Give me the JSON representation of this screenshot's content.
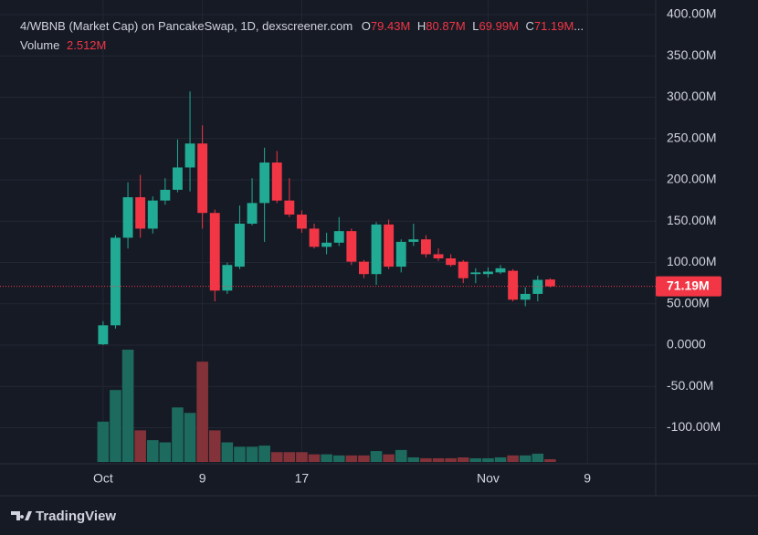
{
  "chart_data": {
    "type": "candlestick",
    "header": {
      "title": "4/WBNB (Market Cap) on PancakeSwap, 1D, dexscreener.com",
      "open_key": "O",
      "open": "79.43M",
      "high_key": "H",
      "high": "80.87M",
      "low_key": "L",
      "low": "69.99M",
      "close_key": "C",
      "close": "71.19M",
      "overflow": "...",
      "volume_key": "Volume",
      "volume": "2.512M"
    },
    "x": [
      0,
      1,
      2,
      3,
      4,
      5,
      6,
      7,
      8,
      9,
      10,
      11,
      12,
      13,
      14,
      15,
      16,
      17,
      18,
      19,
      20,
      21,
      22,
      23,
      24,
      25,
      26,
      27,
      28,
      29,
      30,
      31,
      32,
      33,
      34,
      35,
      36
    ],
    "open": [
      1,
      24,
      130,
      179,
      141,
      175,
      188,
      215,
      244,
      160,
      66,
      95,
      147,
      172,
      221,
      175,
      158,
      141,
      119,
      124,
      138,
      101,
      86,
      146,
      95,
      125,
      128,
      110,
      105,
      101,
      86,
      86,
      88,
      90,
      55,
      62,
      79.43
    ],
    "high": [
      29,
      133,
      197,
      206,
      180,
      202,
      249,
      307,
      266,
      164,
      100,
      169,
      202,
      239,
      235,
      202,
      163,
      147,
      136,
      155,
      141,
      103,
      149,
      152,
      128,
      147,
      133,
      117,
      110,
      103,
      93,
      94,
      97,
      92,
      70,
      84,
      80.87
    ],
    "low": [
      0,
      20,
      117,
      130,
      135,
      170,
      185,
      186,
      141,
      53,
      62,
      92,
      145,
      125,
      172,
      155,
      136,
      117,
      110,
      120,
      97,
      81,
      73,
      92,
      88,
      120,
      106,
      102,
      95,
      75,
      75,
      82,
      86,
      53,
      47,
      53,
      69.99
    ],
    "close": [
      24,
      130,
      179,
      141,
      175,
      188,
      215,
      244,
      160,
      66,
      97,
      147,
      172,
      221,
      175,
      158,
      141,
      119,
      124,
      138,
      101,
      86,
      146,
      95,
      125,
      128,
      110,
      105,
      97,
      81,
      88,
      89,
      93,
      55,
      62,
      79,
      71.19
    ],
    "volume": [
      37,
      66,
      103,
      29,
      20,
      18,
      50,
      45,
      92,
      29,
      18,
      14,
      14,
      15,
      9,
      9,
      9,
      7,
      7,
      6,
      6,
      6,
      10,
      7,
      11,
      4.2,
      3.4,
      3.4,
      3.4,
      4.2,
      3.4,
      3.4,
      4.2,
      6,
      6,
      7.6,
      2.512
    ],
    "up_color": "#22ab94",
    "down_color": "#f23645",
    "volume_up_color": "#1c6b5e",
    "volume_down_color": "#823238",
    "last_price": {
      "value": 71.19,
      "label": "71.19M"
    },
    "ylim": [
      -143.6,
      417.7
    ],
    "yticks": [
      {
        "value": 400,
        "label": "400.00M"
      },
      {
        "value": 350,
        "label": "350.00M"
      },
      {
        "value": 300,
        "label": "300.00M"
      },
      {
        "value": 250,
        "label": "250.00M"
      },
      {
        "value": 200,
        "label": "200.00M"
      },
      {
        "value": 150,
        "label": "150.00M"
      },
      {
        "value": 100,
        "label": "100.00M"
      },
      {
        "value": 50,
        "label": "50.00M"
      },
      {
        "value": 0,
        "label": "0.0000"
      },
      {
        "value": -50,
        "label": "-50.00M"
      },
      {
        "value": -100,
        "label": "-100.00M"
      }
    ],
    "xlim": [
      -8.3,
      44.5
    ],
    "xticks": [
      {
        "value": 0,
        "label": "Oct"
      },
      {
        "value": 8,
        "label": "9"
      },
      {
        "value": 16,
        "label": "17"
      },
      {
        "value": 31,
        "label": "Nov"
      },
      {
        "value": 39,
        "label": "9"
      }
    ],
    "grid": true,
    "brand": "TradingView"
  }
}
